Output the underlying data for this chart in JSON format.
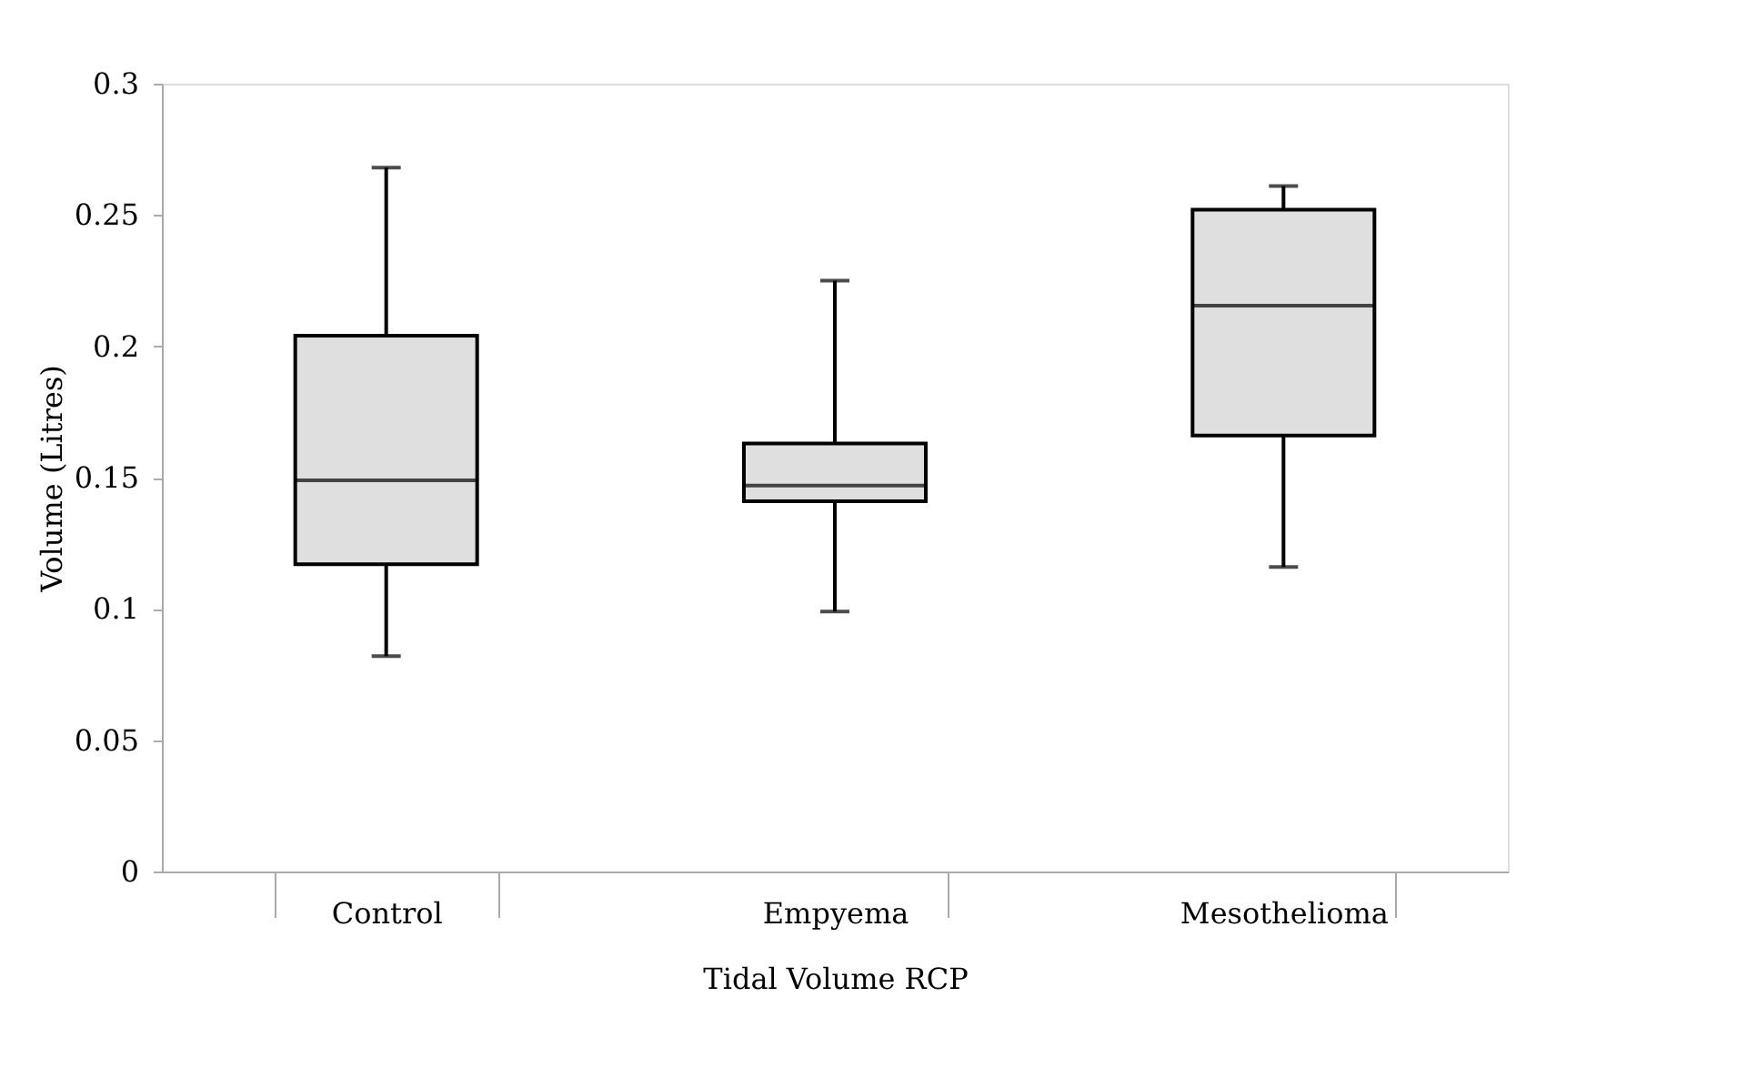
{
  "chart_data": {
    "type": "box",
    "categories": [
      "Control",
      "Empyema",
      "Mesothelioma"
    ],
    "boxes": [
      {
        "low": 0.082,
        "q1": 0.117,
        "median": 0.149,
        "q3": 0.204,
        "high": 0.268
      },
      {
        "low": 0.099,
        "q1": 0.141,
        "median": 0.147,
        "q3": 0.163,
        "high": 0.225
      },
      {
        "low": 0.116,
        "q1": 0.166,
        "median": 0.2155,
        "q3": 0.252,
        "high": 0.261
      }
    ],
    "color": "#dfdfdf",
    "xlabel": "Tidal Volume RCP",
    "ylabel": "Volume (Litres)",
    "ylim": [
      0,
      0.3
    ],
    "yticks": [
      0,
      0.05,
      0.1,
      0.15,
      0.2,
      0.25,
      0.3
    ],
    "grid": false
  }
}
